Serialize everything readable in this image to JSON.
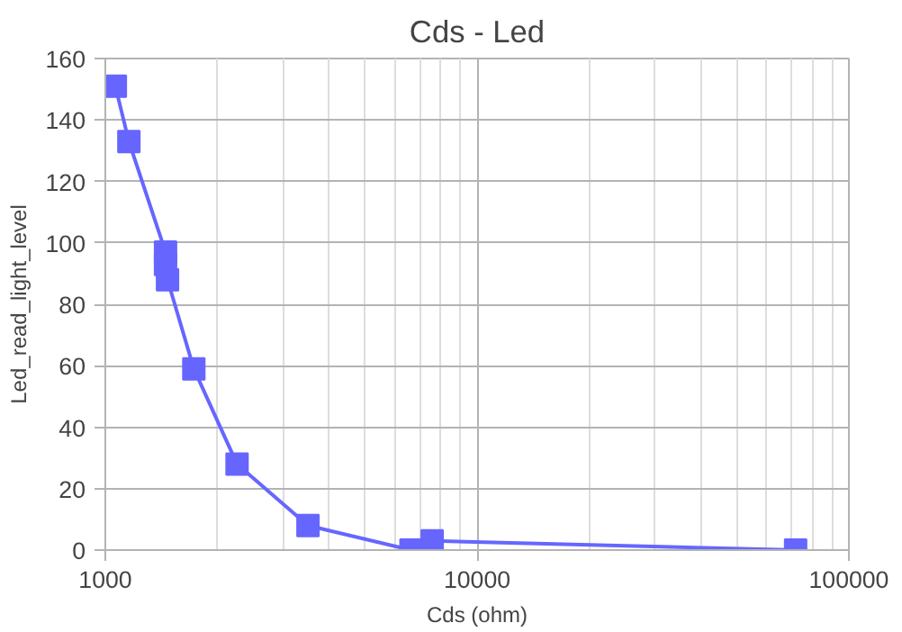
{
  "chart_data": {
    "type": "line",
    "title": "Cds - Led",
    "xlabel": "Cds (ohm)",
    "ylabel": "Led_read_light_level",
    "log": "x",
    "xlim": [
      1000,
      100000
    ],
    "xticks": [
      1000,
      10000,
      100000
    ],
    "ylim": [
      0,
      160
    ],
    "yticks": [
      0,
      20,
      40,
      60,
      80,
      100,
      120,
      140,
      160
    ],
    "grid": true,
    "marker": "square",
    "line_style": "solid",
    "series": [
      {
        "color": "#6666ff",
        "x": [
          1064,
          1157,
          1452,
          1452,
          1470,
          1730,
          2261,
          3508,
          6640,
          7570,
          71900
        ],
        "values": [
          151,
          133,
          97,
          93,
          88,
          59,
          28,
          8,
          0,
          3,
          0
        ]
      }
    ]
  }
}
